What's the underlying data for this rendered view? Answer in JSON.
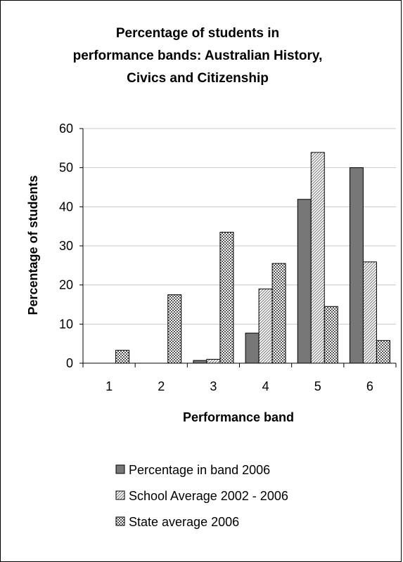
{
  "chart_data": {
    "type": "bar",
    "title_lines": [
      "Percentage of students in",
      "performance bands: Australian History,",
      "Civics and Citizenship"
    ],
    "xlabel": "Performance band",
    "ylabel": "Percentage of students",
    "categories": [
      "1",
      "2",
      "3",
      "4",
      "5",
      "6"
    ],
    "ylim": [
      0,
      60
    ],
    "yticks": [
      "0",
      "10",
      "20",
      "30",
      "40",
      "50",
      "60"
    ],
    "grid": true,
    "legend_position": "bottom",
    "series": [
      {
        "name": "Percentage in band 2006",
        "values": [
          0,
          0,
          0.7,
          7.7,
          41.9,
          50.0
        ],
        "pattern": "solid",
        "color": "#777777"
      },
      {
        "name": "School Average 2002 - 2006",
        "values": [
          0,
          0,
          1.0,
          19.0,
          53.9,
          25.9
        ],
        "pattern": "diagonal",
        "color": "#888888"
      },
      {
        "name": "State average 2006",
        "values": [
          3.3,
          17.5,
          33.5,
          25.5,
          14.5,
          5.8
        ],
        "pattern": "checker",
        "color": "#555555"
      }
    ]
  }
}
